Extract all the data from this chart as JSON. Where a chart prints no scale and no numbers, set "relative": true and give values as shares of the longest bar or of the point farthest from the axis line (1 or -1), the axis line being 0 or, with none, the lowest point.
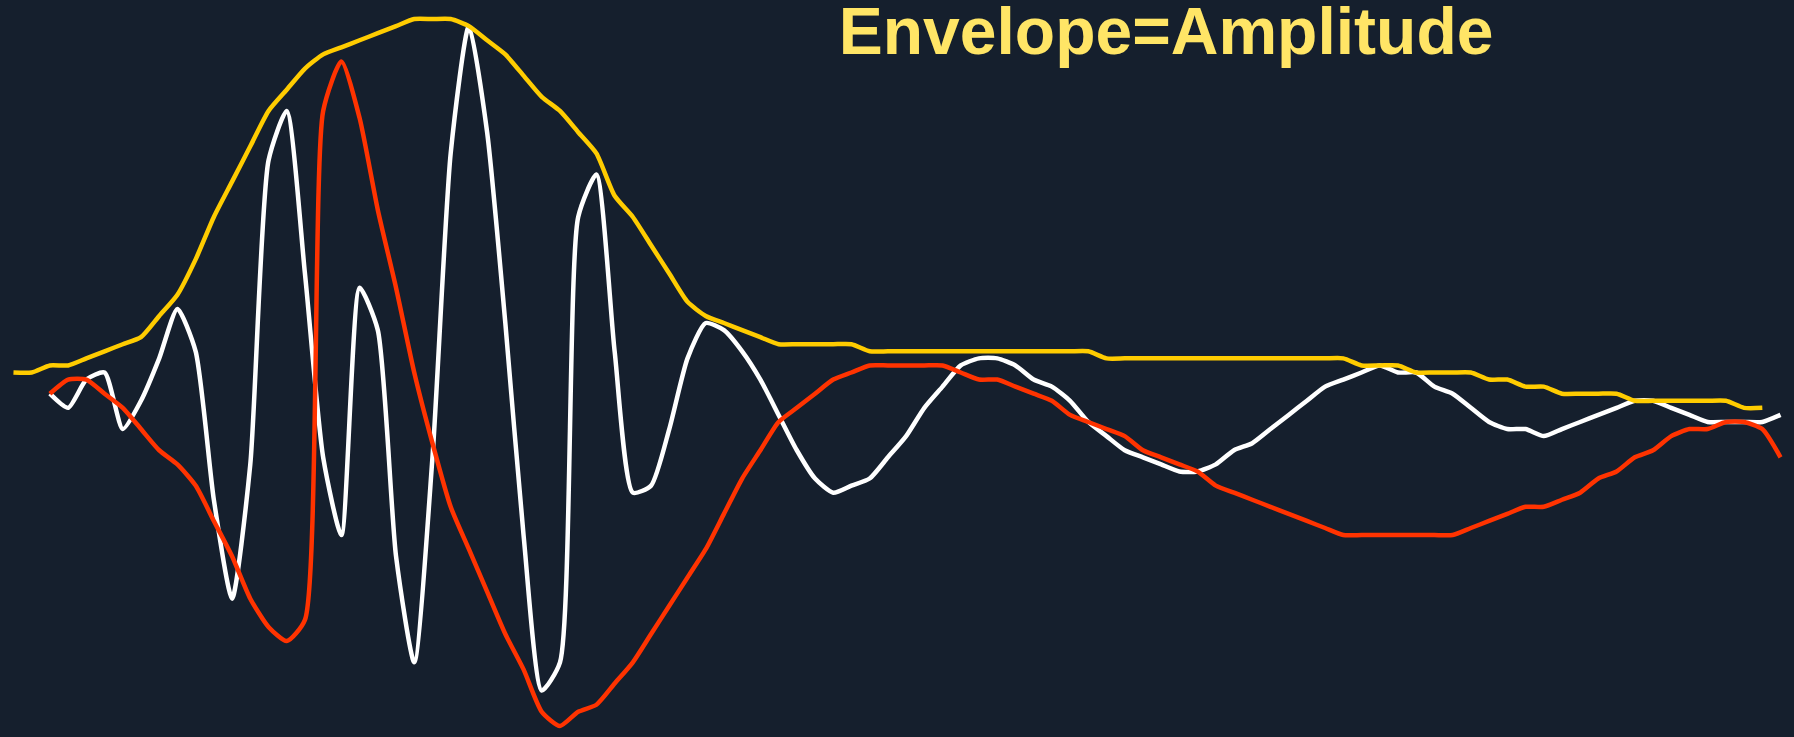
{
  "chart_data": {
    "type": "line",
    "title": "Envelope=Amplitude",
    "relative": true,
    "marker": "none",
    "line_style": "solid",
    "categories": [
      null,
      null,
      null,
      null,
      null,
      null,
      null,
      null,
      null,
      null,
      null,
      null,
      null,
      null,
      null,
      null,
      null,
      null,
      null,
      null,
      null,
      null,
      null,
      null,
      null,
      null,
      null,
      null,
      null,
      null,
      null,
      null,
      null,
      null,
      null,
      null,
      null,
      null,
      null,
      null,
      null,
      null,
      null,
      null,
      null,
      null,
      null,
      null,
      null,
      null,
      null,
      null,
      null,
      null,
      null,
      null,
      null,
      null,
      null,
      null,
      null,
      null,
      null,
      null,
      null,
      null,
      null,
      null,
      null,
      null,
      null,
      null,
      null,
      null,
      null,
      null,
      null,
      null,
      null,
      null,
      null,
      null,
      null,
      null,
      null,
      null,
      null,
      null,
      null,
      null,
      null,
      null,
      null,
      null,
      null,
      null,
      null,
      null
    ],
    "series": [
      {
        "color": "#ffffff",
        "values": [
          null,
          null,
          0.47,
          0.45,
          0.49,
          0.5,
          0.42,
          0.46,
          0.52,
          0.59,
          0.53,
          0.32,
          0.18,
          0.37,
          0.8,
          0.87,
          0.64,
          0.38,
          0.27,
          0.62,
          0.56,
          0.24,
          0.09,
          0.38,
          0.81,
          0.99,
          0.84,
          0.57,
          0.27,
          0.05,
          0.09,
          0.72,
          0.78,
          0.53,
          0.33,
          0.34,
          0.42,
          0.52,
          0.57,
          0.56,
          0.53,
          0.49,
          0.44,
          0.39,
          0.35,
          0.33,
          0.34,
          0.35,
          0.38,
          0.41,
          0.45,
          0.48,
          0.51,
          0.52,
          0.52,
          0.51,
          0.49,
          0.48,
          0.46,
          0.43,
          0.41,
          0.39,
          0.38,
          0.37,
          0.36,
          0.36,
          0.37,
          0.39,
          0.4,
          0.42,
          0.44,
          0.46,
          0.48,
          0.49,
          0.5,
          0.51,
          0.5,
          0.5,
          0.48,
          0.47,
          0.45,
          0.43,
          0.42,
          0.42,
          0.41,
          0.42,
          0.43,
          0.44,
          0.45,
          0.46,
          0.46,
          0.45,
          0.44,
          0.43,
          0.43,
          0.43,
          0.43,
          0.44
        ]
      },
      {
        "color": "#ff3300",
        "values": [
          null,
          null,
          0.47,
          0.49,
          0.49,
          0.47,
          0.45,
          0.42,
          0.39,
          0.37,
          0.34,
          0.29,
          0.24,
          0.18,
          0.14,
          0.12,
          0.15,
          0.87,
          0.94,
          0.86,
          0.73,
          0.62,
          0.5,
          0.4,
          0.31,
          0.25,
          0.19,
          0.13,
          0.08,
          0.02,
          0.0,
          0.02,
          0.03,
          0.06,
          0.09,
          0.13,
          0.17,
          0.21,
          0.25,
          0.3,
          0.35,
          0.39,
          0.43,
          0.45,
          0.47,
          0.49,
          0.5,
          0.51,
          0.51,
          0.51,
          0.51,
          0.51,
          0.5,
          0.49,
          0.49,
          0.48,
          0.47,
          0.46,
          0.44,
          0.43,
          0.42,
          0.41,
          0.39,
          0.38,
          0.37,
          0.36,
          0.34,
          0.33,
          0.32,
          0.31,
          0.3,
          0.29,
          0.28,
          0.27,
          0.27,
          0.27,
          0.27,
          0.27,
          0.27,
          0.27,
          0.28,
          0.29,
          0.3,
          0.31,
          0.31,
          0.32,
          0.33,
          0.35,
          0.36,
          0.38,
          0.39,
          0.41,
          0.42,
          0.42,
          0.43,
          0.43,
          0.42,
          0.38
        ]
      },
      {
        "color": "#ffcc00",
        "values": [
          0.5,
          0.5,
          0.51,
          0.51,
          0.52,
          0.53,
          0.54,
          0.55,
          0.58,
          0.61,
          0.66,
          0.72,
          0.77,
          0.82,
          0.87,
          0.9,
          0.93,
          0.95,
          0.96,
          0.97,
          0.98,
          0.99,
          1.0,
          1.0,
          1.0,
          0.99,
          0.97,
          0.95,
          0.92,
          0.89,
          0.87,
          0.84,
          0.81,
          0.75,
          0.72,
          0.68,
          0.64,
          0.6,
          0.58,
          0.57,
          0.56,
          0.55,
          0.54,
          0.54,
          0.54,
          0.54,
          0.54,
          0.53,
          0.53,
          0.53,
          0.53,
          0.53,
          0.53,
          0.53,
          0.53,
          0.53,
          0.53,
          0.53,
          0.53,
          0.53,
          0.52,
          0.52,
          0.52,
          0.52,
          0.52,
          0.52,
          0.52,
          0.52,
          0.52,
          0.52,
          0.52,
          0.52,
          0.52,
          0.52,
          0.51,
          0.51,
          0.51,
          0.5,
          0.5,
          0.5,
          0.5,
          0.49,
          0.49,
          0.48,
          0.48,
          0.47,
          0.47,
          0.47,
          0.47,
          0.46,
          0.46,
          0.46,
          0.46,
          0.46,
          0.46,
          0.45,
          0.45,
          null
        ]
      }
    ]
  }
}
